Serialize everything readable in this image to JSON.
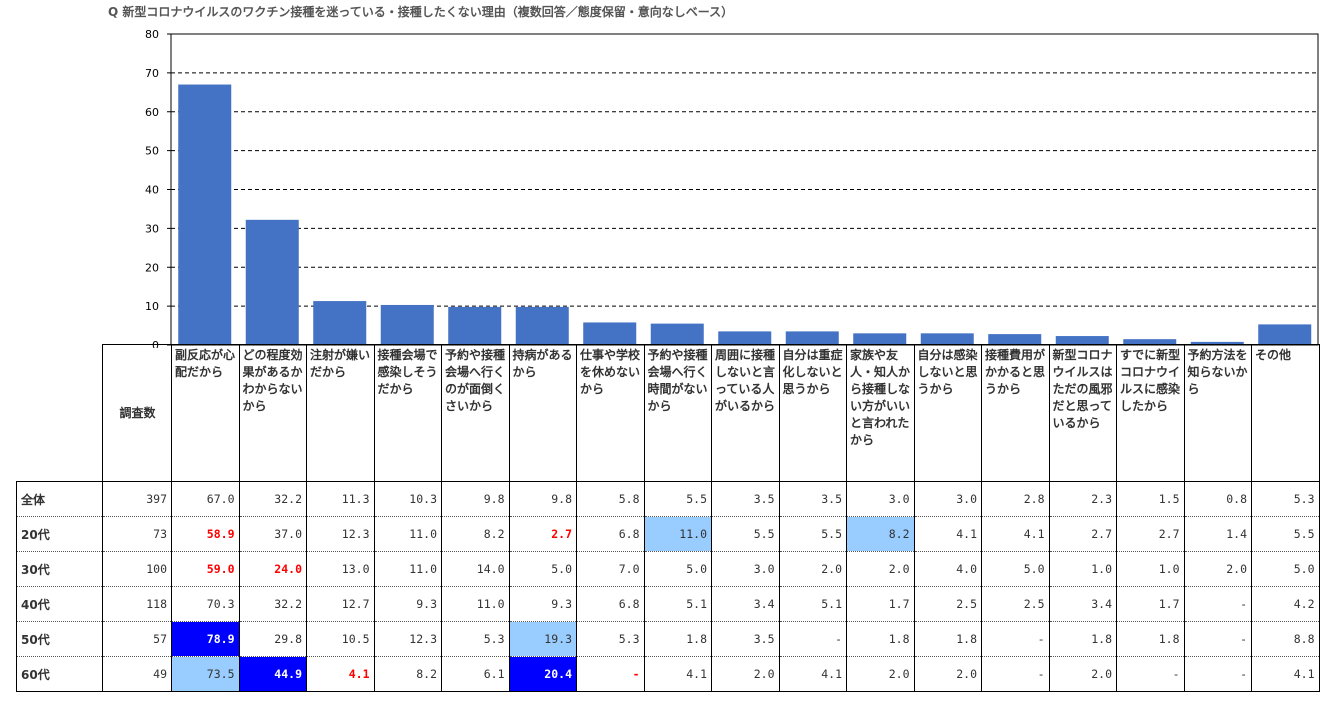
{
  "title": "Q 新型コロナウイルスのワクチン接種を迷っている・接種したくない理由（複数回答／態度保留・意向なしベース）",
  "chart_data": {
    "type": "bar",
    "categories": [
      "副反応が心配だから",
      "どの程度効果があるかわからないから",
      "注射が嫌いだから",
      "接種会場で感染しそうだから",
      "予約や接種会場へ行くのが面倒くさいから",
      "持病があるから",
      "仕事や学校を休めないから",
      "予約や接種会場へ行く時間がないから",
      "周囲に接種しないと言っている人がいるから",
      "自分は重症化しないと思うから",
      "家族や友人・知人から接種しない方がいいと言われたから",
      "自分は感染しないと思うから",
      "接種費用がかかると思うから",
      "新型コロナウイルスはただの風邪だと思っているから",
      "すでに新型コロナウイルスに感染したから",
      "予約方法を知らないから",
      "その他"
    ],
    "values": [
      67.0,
      32.2,
      11.3,
      10.3,
      9.8,
      9.8,
      5.8,
      5.5,
      3.5,
      3.5,
      3.0,
      3.0,
      2.8,
      2.3,
      1.5,
      0.8,
      5.3
    ],
    "ylim": [
      0,
      80
    ],
    "yticks": [
      "0",
      "10",
      "20",
      "30",
      "40",
      "50",
      "60",
      "70",
      "80"
    ],
    "bar_color": "#4472c4",
    "grid": "dashed horizontal"
  },
  "table": {
    "count_header": "調査数",
    "rows": [
      {
        "label": "全体",
        "count": "397",
        "values": [
          "67.0",
          "32.2",
          "11.3",
          "10.3",
          "9.8",
          "9.8",
          "5.8",
          "5.5",
          "3.5",
          "3.5",
          "3.0",
          "3.0",
          "2.8",
          "2.3",
          "1.5",
          "0.8",
          "5.3"
        ],
        "marks": [
          "",
          "",
          "",
          "",
          "",
          "",
          "",
          "",
          "",
          "",
          "",
          "",
          "",
          "",
          "",
          "",
          ""
        ]
      },
      {
        "label": "20代",
        "count": "73",
        "values": [
          "58.9",
          "37.0",
          "12.3",
          "11.0",
          "8.2",
          "2.7",
          "6.8",
          "11.0",
          "5.5",
          "5.5",
          "8.2",
          "4.1",
          "4.1",
          "2.7",
          "2.7",
          "1.4",
          "5.5"
        ],
        "marks": [
          "red",
          "",
          "",
          "",
          "",
          "red",
          "",
          "light",
          "",
          "",
          "light",
          "",
          "",
          "",
          "",
          "",
          ""
        ]
      },
      {
        "label": "30代",
        "count": "100",
        "values": [
          "59.0",
          "24.0",
          "13.0",
          "11.0",
          "14.0",
          "5.0",
          "7.0",
          "5.0",
          "3.0",
          "2.0",
          "2.0",
          "4.0",
          "5.0",
          "1.0",
          "1.0",
          "2.0",
          "5.0"
        ],
        "marks": [
          "red",
          "red",
          "",
          "",
          "",
          "",
          "",
          "",
          "",
          "",
          "",
          "",
          "",
          "",
          "",
          "",
          ""
        ]
      },
      {
        "label": "40代",
        "count": "118",
        "values": [
          "70.3",
          "32.2",
          "12.7",
          "9.3",
          "11.0",
          "9.3",
          "6.8",
          "5.1",
          "3.4",
          "5.1",
          "1.7",
          "2.5",
          "2.5",
          "3.4",
          "1.7",
          "-",
          "4.2"
        ],
        "marks": [
          "",
          "",
          "",
          "",
          "",
          "",
          "",
          "",
          "",
          "",
          "",
          "",
          "",
          "",
          "",
          "",
          ""
        ]
      },
      {
        "label": "50代",
        "count": "57",
        "values": [
          "78.9",
          "29.8",
          "10.5",
          "12.3",
          "5.3",
          "19.3",
          "5.3",
          "1.8",
          "3.5",
          "-",
          "1.8",
          "1.8",
          "-",
          "1.8",
          "1.8",
          "-",
          "8.8"
        ],
        "marks": [
          "dark",
          "",
          "",
          "",
          "",
          "light",
          "",
          "",
          "",
          "",
          "",
          "",
          "",
          "",
          "",
          "",
          ""
        ]
      },
      {
        "label": "60代",
        "count": "49",
        "values": [
          "73.5",
          "44.9",
          "4.1",
          "8.2",
          "6.1",
          "20.4",
          "-",
          "4.1",
          "2.0",
          "4.1",
          "2.0",
          "2.0",
          "-",
          "2.0",
          "-",
          "-",
          "4.1"
        ],
        "marks": [
          "light",
          "dark",
          "red",
          "",
          "",
          "dark",
          "red",
          "",
          "",
          "",
          "",
          "",
          "",
          "",
          "",
          "",
          ""
        ]
      }
    ]
  },
  "colors": {
    "bar": "#4472c4",
    "highlight_light": "#99ccff",
    "highlight_dark": "#0000ff",
    "low_text": "#ff0000"
  }
}
